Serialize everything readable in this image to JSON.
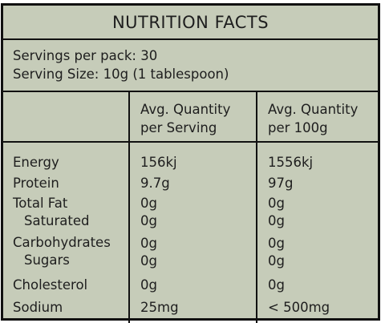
{
  "title": "NUTRITION FACTS",
  "servings": {
    "per_pack": "Servings per pack: 30",
    "size": "Serving Size: 10g (1 tablespoon)"
  },
  "headers": {
    "col_serving_line1": "Avg. Quantity",
    "col_serving_line2": "per Serving",
    "col_100g_line1": "Avg. Quantity",
    "col_100g_line2": "per 100g"
  },
  "rows": [
    {
      "label": "Energy",
      "serving": "156kj",
      "per100": "1556kj"
    },
    {
      "label": "Protein",
      "serving": "9.7g",
      "per100": "97g"
    },
    {
      "label": "Total Fat",
      "serving": "0g",
      "per100": "0g"
    },
    {
      "label": "Saturated",
      "serving": "0g",
      "per100": "0g"
    },
    {
      "label": "Carbohydrates",
      "serving": "0g",
      "per100": "0g"
    },
    {
      "label": "Sugars",
      "serving": "0g",
      "per100": "0g"
    },
    {
      "label": "Cholesterol",
      "serving": "0g",
      "per100": "0g"
    },
    {
      "label": "Sodium",
      "serving": "25mg",
      "per100": "< 500mg"
    }
  ],
  "colors": {
    "background": "#c6ccb9",
    "border": "#111111",
    "text": "#1e1e1e"
  }
}
